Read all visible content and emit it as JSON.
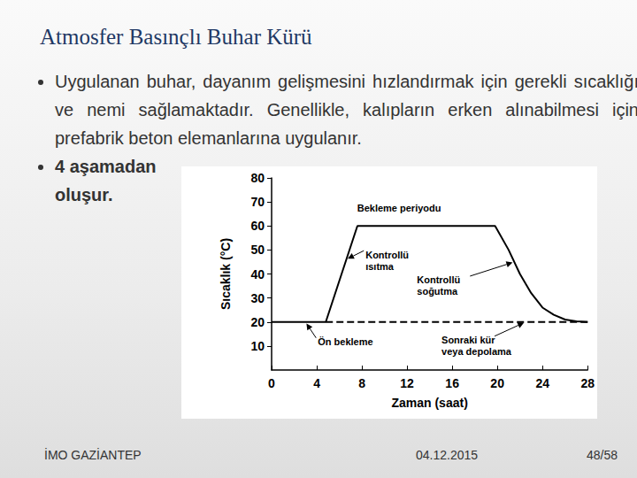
{
  "slide": {
    "title": "Atmosfer Basınçlı Buhar Kürü",
    "bullets": [
      "Uygulanan buhar, dayanım gelişmesini hızlandırmak için gerekli sıcaklığı ve nemi sağlamaktadır. Genellikle, kalıpların erken alınabilmesi için prefabrik beton elemanlarına uygulanır.",
      "4 aşamadan oluşur."
    ],
    "footer": {
      "left": "İMO GAZİANTEP",
      "center": "04.12.2015",
      "right": "48/58"
    }
  },
  "chart_data": {
    "type": "line",
    "x_label": "Zaman (saat)",
    "y_label": "Sıcaklık (°C)",
    "series": [
      {
        "x": [
          0,
          4.8,
          7.6,
          19.8,
          21,
          22,
          23,
          24,
          25,
          26,
          27,
          28
        ],
        "values": [
          20,
          20,
          60,
          60,
          50,
          40,
          32,
          26,
          23,
          21,
          20.3,
          20
        ],
        "color": "#000000",
        "line_style": "solid"
      },
      {
        "x": [
          4.8,
          28
        ],
        "values": [
          20,
          20
        ],
        "color": "#000000",
        "line_style": "dashed"
      }
    ],
    "xlim": [
      0,
      28
    ],
    "xticks": [
      0,
      4,
      8,
      12,
      16,
      20,
      24,
      28
    ],
    "ylim": [
      0,
      80
    ],
    "yticks": [
      10,
      20,
      30,
      40,
      50,
      60,
      70,
      80
    ],
    "grid": false,
    "annotations": [
      {
        "text": "Bekleme periyodu",
        "x": 11.5,
        "y": 60
      },
      {
        "text": "Kontrollü\nısıtma",
        "x": 6.6,
        "y": 46
      },
      {
        "text": "Kontrollü\nsoğutma",
        "x": 21.5,
        "y": 45
      },
      {
        "text": "Ön bekleme",
        "x": 3,
        "y": 20
      },
      {
        "text": "Sonraki kür\nveya depolama",
        "x": 22.5,
        "y": 20
      }
    ]
  }
}
